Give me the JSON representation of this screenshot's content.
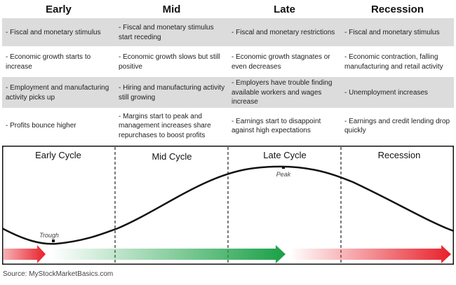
{
  "table": {
    "headers": [
      "Early",
      "Mid",
      "Late",
      "Recession"
    ],
    "rows": [
      [
        "- Fiscal and monetary stimulus",
        "- Fiscal and monetary stimulus start receding",
        "- Fiscal and monetary restrictions",
        "- Fiscal and monetary stimulus"
      ],
      [
        "- Economic growth starts to increase",
        "- Economic growth slows but still positive",
        "- Economic growth stagnates or even decreases",
        "- Economic contraction, falling manufacturing and retail activity"
      ],
      [
        "- Employment and manufacturing activity picks up",
        "- Hiring and manufacturing activity still growing",
        "- Employers have trouble finding available workers and wages increase",
        "- Unemployment increases"
      ],
      [
        "- Profits bounce higher",
        "- Margins start to peak and management increases share repurchases to boost profits",
        "- Earnings start to disappoint against high expectations",
        "- Earnings and credit lending drop quickly"
      ]
    ]
  },
  "diagram": {
    "phases": [
      "Early Cycle",
      "Mid Cycle",
      "Late Cycle",
      "Recession"
    ],
    "trough_label": "Trough",
    "peak_label": "Peak",
    "colors": {
      "red": "#e8202a",
      "green": "#1aa046",
      "curve": "#111111"
    }
  },
  "source": "Source: MyStockMarketBasics.com"
}
